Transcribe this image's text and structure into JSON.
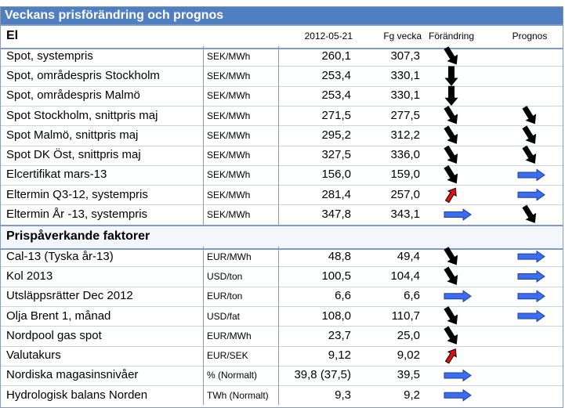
{
  "header": {
    "title": "Veckans prisförändring och prognos"
  },
  "sections": [
    {
      "title": "El",
      "columns": [
        "2012-05-21",
        "Fg vecka",
        "Förändring",
        "Prognos"
      ],
      "rows": [
        [
          "Spot, systempris",
          "SEK/MWh",
          "260,1",
          "307,3"
        ],
        [
          "Spot, områdespris Stockholm",
          "SEK/MWh",
          "253,4",
          "330,1"
        ],
        [
          "Spot, områdespris Malmö",
          "SEK/MWh",
          "253,4",
          "330,1"
        ],
        [
          "Spot Stockholm, snittpris maj",
          "SEK/MWh",
          "271,5",
          "277,5"
        ],
        [
          "Spot Malmö, snittpris maj",
          "SEK/MWh",
          "295,2",
          "312,2"
        ],
        [
          "Spot DK Öst, snittpris maj",
          "SEK/MWh",
          "327,5",
          "336,0"
        ],
        [
          "Elcertifikat mars-13",
          "SEK/MWh",
          "156,0",
          "159,0"
        ],
        [
          "Eltermin Q3-12, systempris",
          "SEK/MWh",
          "281,4",
          "257,0"
        ],
        [
          "Eltermin År -13, systempris",
          "SEK/MWh",
          "347,8",
          "343,1"
        ]
      ]
    },
    {
      "title": "Prispåverkande faktorer",
      "rows": [
        [
          "Cal-13 (Tyska år-13)",
          "EUR/MWh",
          "48,8",
          "49,4"
        ],
        [
          "Kol 2013",
          "USD/ton",
          "100,5",
          "104,4"
        ],
        [
          "Utsläppsrätter Dec 2012",
          "EUR/ton",
          "6,6",
          "6,6"
        ],
        [
          "Olja Brent 1, månad",
          "USD/fat",
          "108,0",
          "110,7"
        ],
        [
          "Nordpool gas spot",
          "EUR/MWh",
          "23,7",
          "25,0"
        ],
        [
          "Valutakurs",
          "EUR/SEK",
          "9,12",
          "9,02"
        ],
        [
          "Nordiska magasinsnivåer",
          "% (Normalt)",
          "39,8 (37,5)",
          "39,5"
        ],
        [
          "Hydrologisk balans Norden",
          "TWh (Normalt)",
          "9,3",
          "9,2"
        ]
      ]
    }
  ]
}
